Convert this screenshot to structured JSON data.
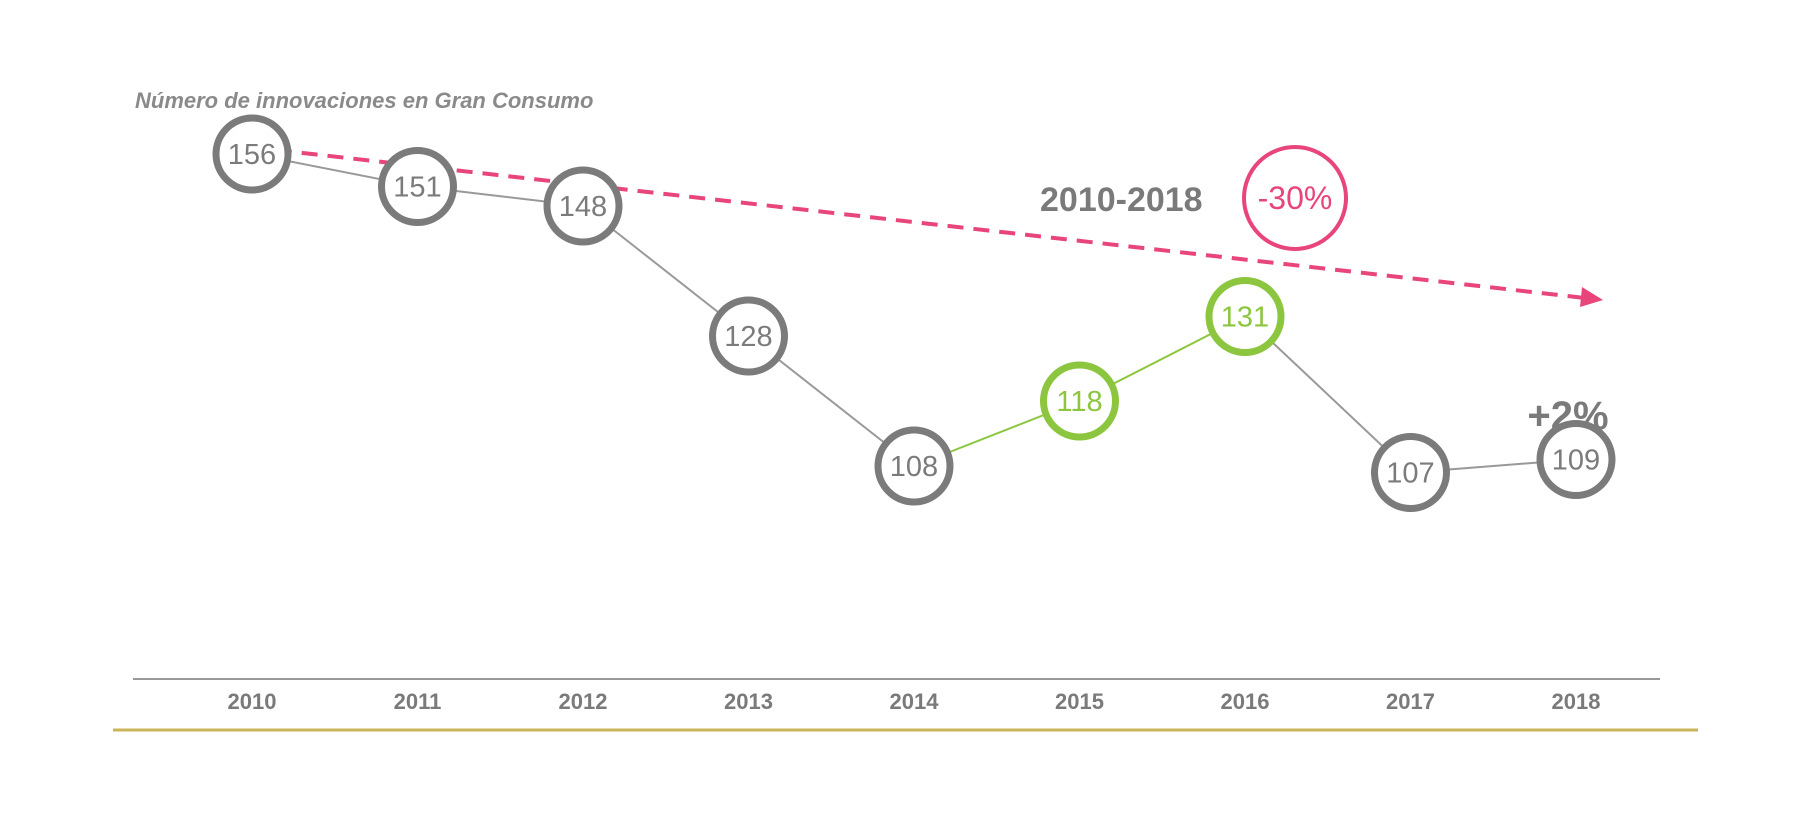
{
  "chart_data": {
    "type": "line",
    "title": "Número de innovaciones en Gran Consumo",
    "x": [
      "2010",
      "2011",
      "2012",
      "2013",
      "2014",
      "2015",
      "2016",
      "2017",
      "2018"
    ],
    "series": [
      {
        "values": [
          156,
          151,
          148,
          128,
          108,
          118,
          131,
          107,
          109
        ]
      }
    ],
    "highlighted_categories": [
      "2015",
      "2016"
    ],
    "ylim": [
      80,
      170
    ],
    "grid": false,
    "legend": "none",
    "annotations": {
      "period": "2010-2018",
      "period_change": "-30%",
      "recent_change": "+2%"
    },
    "colors": {
      "default": "#7b7b7b",
      "highlight": "#8cc63f",
      "accent": "#e8457a",
      "axis": "#999999",
      "baseline": "#c9b458"
    }
  }
}
